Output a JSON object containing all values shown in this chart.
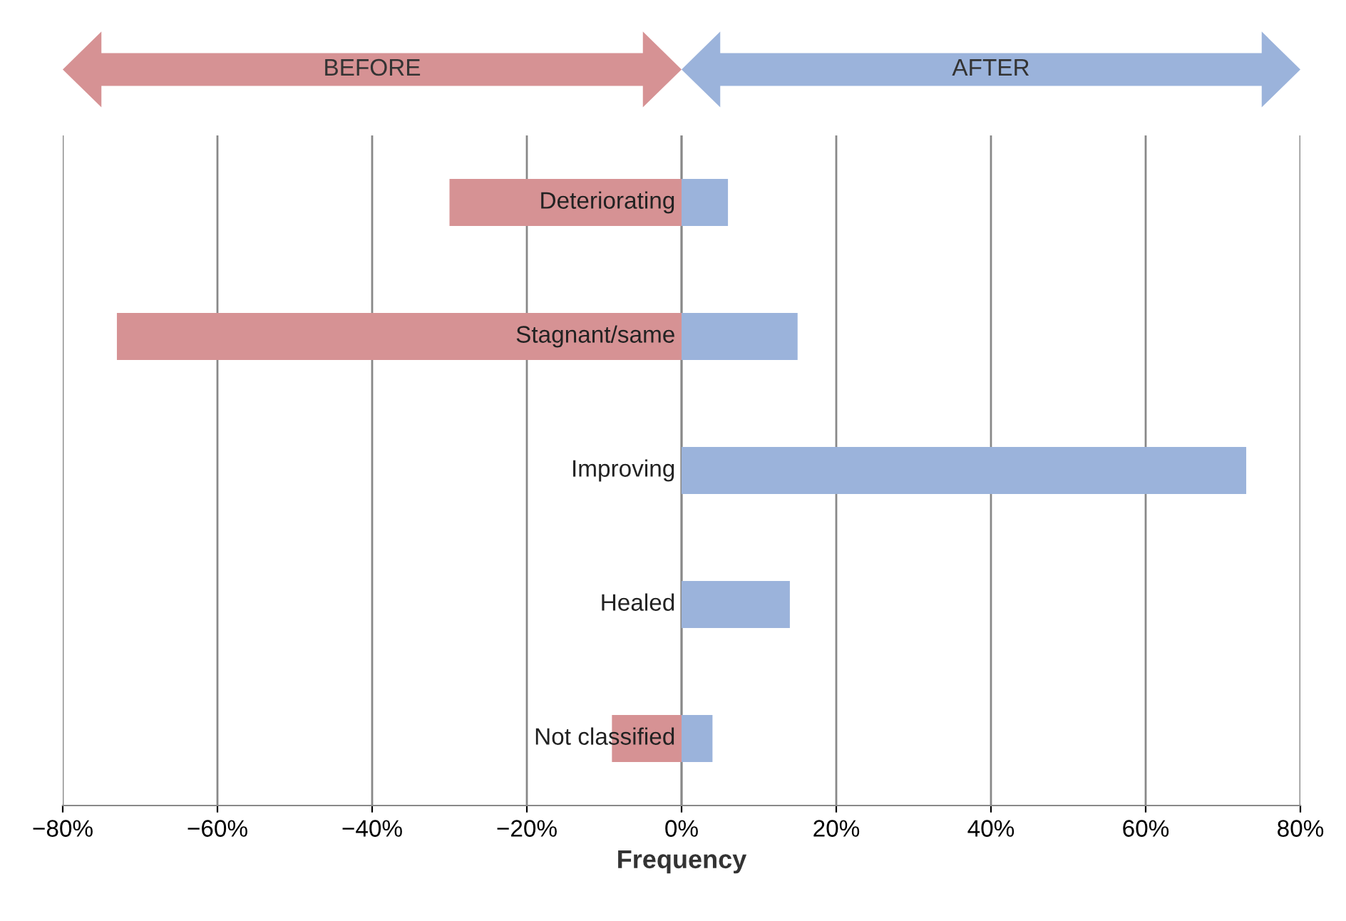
{
  "chart_data": {
    "type": "bar",
    "orientation": "horizontal",
    "xlabel": "Frequency",
    "stacked": true,
    "categories": [
      "Deteriorating",
      "Stagnant/same",
      "Improving",
      "Healed",
      "Not classified"
    ],
    "series": [
      {
        "name": "BEFORE",
        "color": "#d69294",
        "values": [
          -30,
          -73,
          null,
          null,
          -9
        ]
      },
      {
        "name": "AFTER",
        "color": "#9bb3db",
        "values": [
          6,
          15,
          73,
          14,
          4
        ]
      }
    ],
    "xlim": [
      -80,
      80
    ],
    "xticks": [
      {
        "value": -80,
        "label": "−80%"
      },
      {
        "value": -60,
        "label": "−60%"
      },
      {
        "value": -40,
        "label": "−40%"
      },
      {
        "value": -20,
        "label": "−20%"
      },
      {
        "value": 0,
        "label": "0%"
      },
      {
        "value": 20,
        "label": "20%"
      },
      {
        "value": 40,
        "label": "40%"
      },
      {
        "value": 60,
        "label": "60%"
      },
      {
        "value": 80,
        "label": "80%"
      }
    ],
    "grid": "x"
  }
}
